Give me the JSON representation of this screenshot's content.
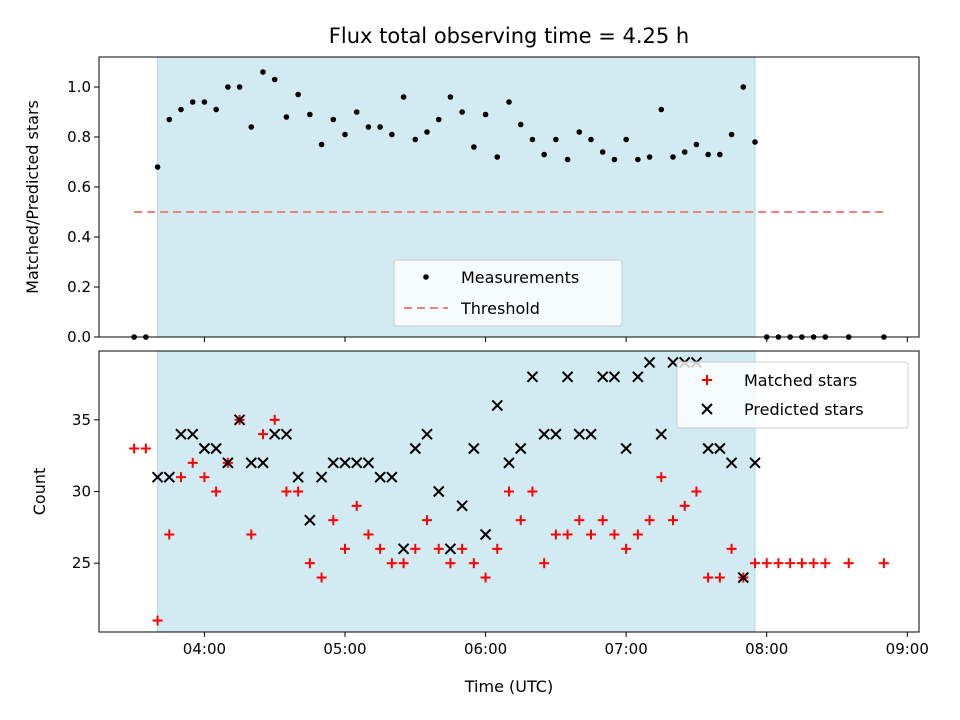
{
  "title": "Flux total observing time = 4.25 h",
  "xlabel": "Time (UTC)",
  "colors": {
    "measurements": "#000000",
    "threshold": "#f08080",
    "matched": "#ff0000",
    "predicted": "#000000",
    "observing_span": "#add8e6"
  },
  "chart_data": [
    {
      "type": "scatter",
      "ylabel": "Matched/Predicted stars",
      "ylim": [
        0,
        1.12
      ],
      "yticks": [
        "0.0",
        "0.2",
        "0.4",
        "0.6",
        "0.8",
        "1.0"
      ],
      "xlim": [
        "03:15",
        "09:05"
      ],
      "observing_span": [
        "03:40",
        "07:55"
      ],
      "legend": {
        "placement": "lower-center",
        "entries": [
          "Measurements",
          "Threshold"
        ]
      },
      "series": [
        {
          "name": "Measurements",
          "marker": "dot",
          "points": [
            [
              "03:30",
              0
            ],
            [
              "03:35",
              0
            ],
            [
              "03:40",
              0.68
            ],
            [
              "03:45",
              0.87
            ],
            [
              "03:50",
              0.91
            ],
            [
              "03:55",
              0.94
            ],
            [
              "04:00",
              0.94
            ],
            [
              "04:05",
              0.91
            ],
            [
              "04:10",
              1.0
            ],
            [
              "04:15",
              1.0
            ],
            [
              "04:20",
              0.84
            ],
            [
              "04:25",
              1.06
            ],
            [
              "04:30",
              1.03
            ],
            [
              "04:35",
              0.88
            ],
            [
              "04:40",
              0.97
            ],
            [
              "04:45",
              0.89
            ],
            [
              "04:50",
              0.77
            ],
            [
              "04:55",
              0.87
            ],
            [
              "05:00",
              0.81
            ],
            [
              "05:05",
              0.9
            ],
            [
              "05:10",
              0.84
            ],
            [
              "05:15",
              0.84
            ],
            [
              "05:20",
              0.81
            ],
            [
              "05:25",
              0.96
            ],
            [
              "05:30",
              0.79
            ],
            [
              "05:35",
              0.82
            ],
            [
              "05:40",
              0.87
            ],
            [
              "05:45",
              0.96
            ],
            [
              "05:50",
              0.9
            ],
            [
              "05:55",
              0.76
            ],
            [
              "06:00",
              0.89
            ],
            [
              "06:05",
              0.72
            ],
            [
              "06:10",
              0.94
            ],
            [
              "06:15",
              0.85
            ],
            [
              "06:20",
              0.79
            ],
            [
              "06:25",
              0.73
            ],
            [
              "06:30",
              0.79
            ],
            [
              "06:35",
              0.71
            ],
            [
              "06:40",
              0.82
            ],
            [
              "06:45",
              0.79
            ],
            [
              "06:50",
              0.74
            ],
            [
              "06:55",
              0.71
            ],
            [
              "07:00",
              0.79
            ],
            [
              "07:05",
              0.71
            ],
            [
              "07:10",
              0.72
            ],
            [
              "07:15",
              0.91
            ],
            [
              "07:20",
              0.72
            ],
            [
              "07:25",
              0.74
            ],
            [
              "07:30",
              0.77
            ],
            [
              "07:35",
              0.73
            ],
            [
              "07:40",
              0.73
            ],
            [
              "07:45",
              0.81
            ],
            [
              "07:50",
              1.0
            ],
            [
              "07:55",
              0.78
            ],
            [
              "08:00",
              0
            ],
            [
              "08:05",
              0
            ],
            [
              "08:10",
              0
            ],
            [
              "08:15",
              0
            ],
            [
              "08:20",
              0
            ],
            [
              "08:25",
              0
            ],
            [
              "08:35",
              0
            ],
            [
              "08:50",
              0
            ]
          ]
        },
        {
          "name": "Threshold",
          "style": "dashed",
          "x": [
            "03:30",
            "08:50"
          ],
          "y": [
            0.5,
            0.5
          ]
        }
      ]
    },
    {
      "type": "scatter",
      "ylabel": "Count",
      "ylim": [
        20.2,
        39.8
      ],
      "yticks": [
        "25",
        "30",
        "35"
      ],
      "xticks": [
        "04:00",
        "05:00",
        "06:00",
        "07:00",
        "08:00",
        "09:00"
      ],
      "xlim": [
        "03:15",
        "09:05"
      ],
      "observing_span": [
        "03:40",
        "07:55"
      ],
      "legend": {
        "placement": "upper-right",
        "entries": [
          "Matched stars",
          "Predicted stars"
        ]
      },
      "series": [
        {
          "name": "Matched stars",
          "marker": "plus",
          "points": [
            [
              "03:30",
              33
            ],
            [
              "03:35",
              33
            ],
            [
              "03:40",
              21
            ],
            [
              "03:45",
              27
            ],
            [
              "03:50",
              31
            ],
            [
              "03:55",
              32
            ],
            [
              "04:00",
              31
            ],
            [
              "04:05",
              30
            ],
            [
              "04:10",
              32
            ],
            [
              "04:15",
              35
            ],
            [
              "04:20",
              27
            ],
            [
              "04:25",
              34
            ],
            [
              "04:30",
              35
            ],
            [
              "04:35",
              30
            ],
            [
              "04:40",
              30
            ],
            [
              "04:45",
              25
            ],
            [
              "04:50",
              24
            ],
            [
              "04:55",
              28
            ],
            [
              "05:00",
              26
            ],
            [
              "05:05",
              29
            ],
            [
              "05:10",
              27
            ],
            [
              "05:15",
              26
            ],
            [
              "05:20",
              25
            ],
            [
              "05:25",
              25
            ],
            [
              "05:30",
              26
            ],
            [
              "05:35",
              28
            ],
            [
              "05:40",
              26
            ],
            [
              "05:45",
              25
            ],
            [
              "05:50",
              26
            ],
            [
              "05:55",
              25
            ],
            [
              "06:00",
              24
            ],
            [
              "06:05",
              26
            ],
            [
              "06:10",
              30
            ],
            [
              "06:15",
              28
            ],
            [
              "06:20",
              30
            ],
            [
              "06:25",
              25
            ],
            [
              "06:30",
              27
            ],
            [
              "06:35",
              27
            ],
            [
              "06:40",
              28
            ],
            [
              "06:45",
              27
            ],
            [
              "06:50",
              28
            ],
            [
              "06:55",
              27
            ],
            [
              "07:00",
              26
            ],
            [
              "07:05",
              27
            ],
            [
              "07:10",
              28
            ],
            [
              "07:15",
              31
            ],
            [
              "07:20",
              28
            ],
            [
              "07:25",
              29
            ],
            [
              "07:30",
              30
            ],
            [
              "07:35",
              24
            ],
            [
              "07:40",
              24
            ],
            [
              "07:45",
              26
            ],
            [
              "07:50",
              24
            ],
            [
              "07:55",
              25
            ],
            [
              "08:00",
              25
            ],
            [
              "08:05",
              25
            ],
            [
              "08:10",
              25
            ],
            [
              "08:15",
              25
            ],
            [
              "08:20",
              25
            ],
            [
              "08:25",
              25
            ],
            [
              "08:35",
              25
            ],
            [
              "08:50",
              25
            ]
          ]
        },
        {
          "name": "Predicted stars",
          "marker": "x",
          "points": [
            [
              "03:40",
              31
            ],
            [
              "03:45",
              31
            ],
            [
              "03:50",
              34
            ],
            [
              "03:55",
              34
            ],
            [
              "04:00",
              33
            ],
            [
              "04:05",
              33
            ],
            [
              "04:10",
              32
            ],
            [
              "04:15",
              35
            ],
            [
              "04:20",
              32
            ],
            [
              "04:25",
              32
            ],
            [
              "04:30",
              34
            ],
            [
              "04:35",
              34
            ],
            [
              "04:40",
              31
            ],
            [
              "04:45",
              28
            ],
            [
              "04:50",
              31
            ],
            [
              "04:55",
              32
            ],
            [
              "05:00",
              32
            ],
            [
              "05:05",
              32
            ],
            [
              "05:10",
              32
            ],
            [
              "05:15",
              31
            ],
            [
              "05:20",
              31
            ],
            [
              "05:25",
              26
            ],
            [
              "05:30",
              33
            ],
            [
              "05:35",
              34
            ],
            [
              "05:40",
              30
            ],
            [
              "05:45",
              26
            ],
            [
              "05:50",
              29
            ],
            [
              "05:55",
              33
            ],
            [
              "06:00",
              27
            ],
            [
              "06:05",
              36
            ],
            [
              "06:10",
              32
            ],
            [
              "06:15",
              33
            ],
            [
              "06:20",
              38
            ],
            [
              "06:25",
              34
            ],
            [
              "06:30",
              34
            ],
            [
              "06:35",
              38
            ],
            [
              "06:40",
              34
            ],
            [
              "06:45",
              34
            ],
            [
              "06:50",
              38
            ],
            [
              "06:55",
              38
            ],
            [
              "07:00",
              33
            ],
            [
              "07:05",
              38
            ],
            [
              "07:10",
              39
            ],
            [
              "07:15",
              34
            ],
            [
              "07:20",
              39
            ],
            [
              "07:25",
              39
            ],
            [
              "07:30",
              39
            ],
            [
              "07:35",
              33
            ],
            [
              "07:40",
              33
            ],
            [
              "07:45",
              32
            ],
            [
              "07:50",
              24
            ],
            [
              "07:55",
              32
            ]
          ]
        }
      ]
    }
  ]
}
